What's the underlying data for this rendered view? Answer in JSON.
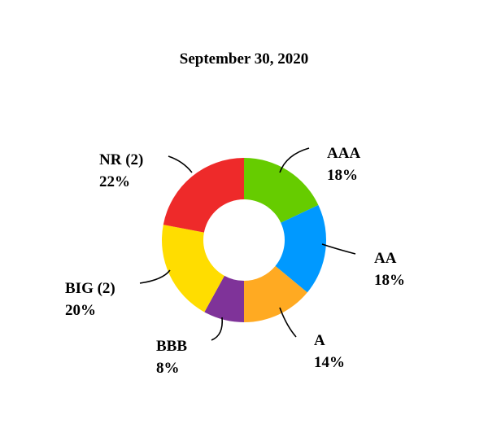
{
  "chart_data": {
    "type": "pie",
    "title": "September 30, 2020",
    "series": [
      {
        "name": "AAA",
        "value": 18,
        "value_label": "18%",
        "color": "#66cc00"
      },
      {
        "name": "AA",
        "value": 18,
        "value_label": "18%",
        "color": "#0099ff"
      },
      {
        "name": "A",
        "value": 14,
        "value_label": "14%",
        "color": "#ffaa22"
      },
      {
        "name": "BBB",
        "value": 8,
        "value_label": "8%",
        "color": "#7f3399"
      },
      {
        "name": "BIG (2)",
        "value": 20,
        "value_label": "20%",
        "color": "#ffdd00"
      },
      {
        "name": "NR (2)",
        "value": 22,
        "value_label": "22%",
        "color": "#ee2a2a"
      }
    ],
    "legend": "none",
    "donut": true
  }
}
